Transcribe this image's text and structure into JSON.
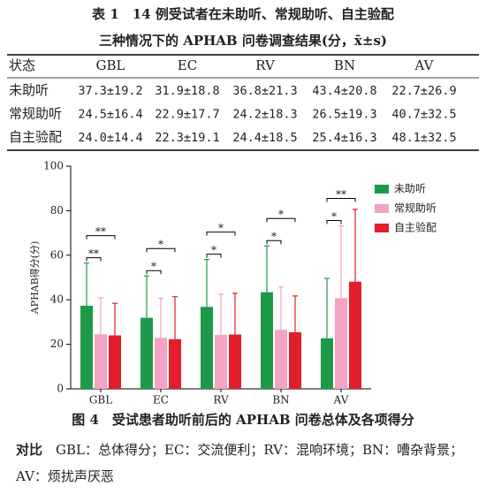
{
  "table": {
    "title_lines": [
      "表 1　14 例受试者在未助听、常规助听、自主验配",
      "三种情况下的 APHAB 问卷调查结果(分，x̄±s)"
    ],
    "header": [
      "状态",
      "GBL",
      "EC",
      "RV",
      "BN",
      "AV"
    ],
    "rows": [
      [
        "未助听",
        "37.3±19.2",
        "31.9±18.8",
        "36.8±21.3",
        "43.4±20.8",
        "22.7±26.9"
      ],
      [
        "常规助听",
        "24.5±16.4",
        "22.9±17.7",
        "24.2±18.3",
        "26.5±19.3",
        "40.7±32.5"
      ],
      [
        "自主验配",
        "24.0±14.4",
        "22.3±19.1",
        "24.4±18.5",
        "25.4±16.3",
        "48.1±32.5"
      ]
    ]
  },
  "chart_data": {
    "type": "bar",
    "y_label": "APHAB得分(分)",
    "categories": [
      "GBL",
      "EC",
      "RV",
      "BN",
      "AV"
    ],
    "series": [
      {
        "name": "未助听",
        "color": "#1d9a48",
        "values": [
          37.3,
          31.9,
          36.8,
          43.4,
          22.7
        ],
        "errors": [
          19.2,
          18.8,
          21.3,
          20.8,
          26.9
        ]
      },
      {
        "name": "常规助听",
        "color": "#f3a3c3",
        "values": [
          24.5,
          22.9,
          24.2,
          26.5,
          40.7
        ],
        "errors": [
          16.4,
          17.7,
          18.3,
          19.3,
          32.5
        ]
      },
      {
        "name": "自主验配",
        "color": "#e31d2b",
        "values": [
          24.0,
          22.3,
          24.4,
          25.4,
          48.1
        ],
        "errors": [
          14.4,
          19.1,
          18.5,
          16.3,
          32.5
        ]
      }
    ],
    "ylim": [
      0,
      100
    ],
    "yticks": [
      0,
      20,
      40,
      60,
      80,
      100
    ],
    "significance": [
      {
        "category": 0,
        "from": 0,
        "to": 1,
        "label": "**"
      },
      {
        "category": 0,
        "from": 0,
        "to": 2,
        "label": "**"
      },
      {
        "category": 1,
        "from": 0,
        "to": 1,
        "label": "*"
      },
      {
        "category": 1,
        "from": 0,
        "to": 2,
        "label": "*"
      },
      {
        "category": 2,
        "from": 0,
        "to": 1,
        "label": "*"
      },
      {
        "category": 2,
        "from": 0,
        "to": 2,
        "label": "*"
      },
      {
        "category": 3,
        "from": 0,
        "to": 1,
        "label": "*"
      },
      {
        "category": 3,
        "from": 0,
        "to": 2,
        "label": "*"
      },
      {
        "category": 4,
        "from": 0,
        "to": 1,
        "label": "*"
      },
      {
        "category": 4,
        "from": 0,
        "to": 2,
        "label": "**"
      }
    ]
  },
  "figure": {
    "caption": "图 4　受试患者助听前后的 APHAB 问卷总体及各项得分",
    "caption_end": "对比",
    "note": "GBL：总体得分；EC：交流便利；RV：混响环境；BN：嘈杂背景；AV：烦扰声厌恶"
  }
}
